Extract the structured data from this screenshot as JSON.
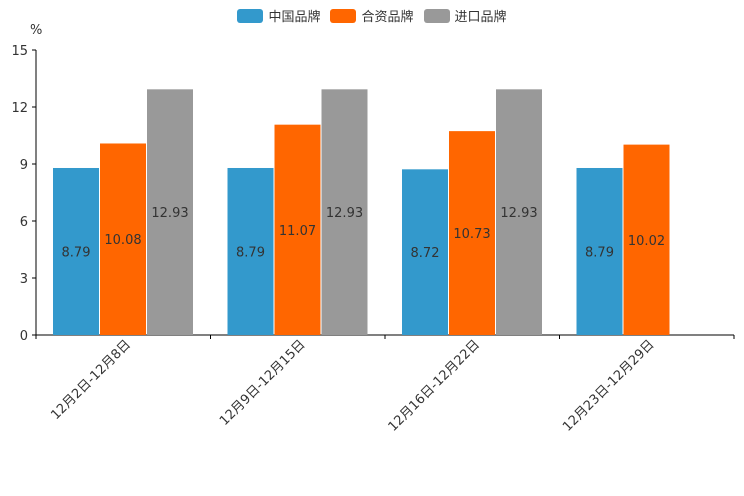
{
  "chart_data": {
    "type": "bar",
    "title": "",
    "ylabel": "%",
    "xlabel": "",
    "ylim": [
      0,
      15
    ],
    "yticks": [
      0,
      3,
      6,
      9,
      12,
      15
    ],
    "categories": [
      "12月2日-12月8日",
      "12月9日-12月15日",
      "12月16日-12月22日",
      "12月23日-12月29日"
    ],
    "series": [
      {
        "name": "中国品牌",
        "color": "#3399cc",
        "values": [
          8.79,
          8.79,
          8.72,
          8.79
        ]
      },
      {
        "name": "合资品牌",
        "color": "#ff6600",
        "values": [
          10.08,
          11.07,
          10.73,
          10.02
        ]
      },
      {
        "name": "进口品牌",
        "color": "#999999",
        "values": [
          12.93,
          12.93,
          12.93,
          null
        ]
      }
    ],
    "legend_position": "top-center",
    "grid": false
  }
}
